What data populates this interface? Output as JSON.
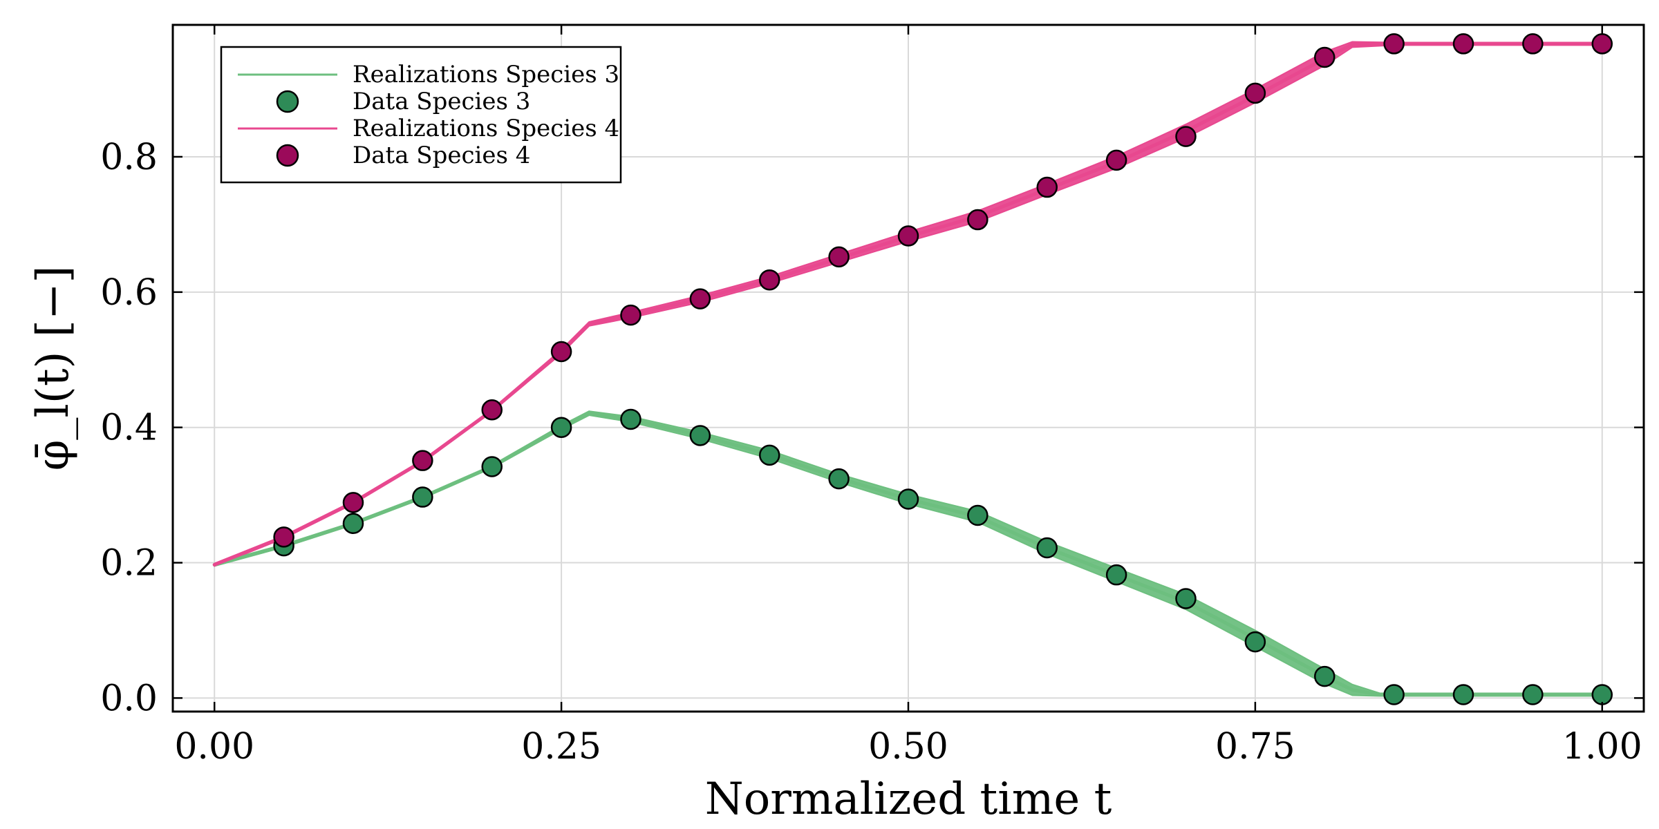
{
  "chart_data": {
    "type": "line",
    "title": "",
    "xlabel": "Normalized time t",
    "ylabel": "φ̄_l(t) [−]",
    "xlim": [
      -0.03,
      1.03
    ],
    "ylim": [
      -0.02,
      0.995
    ],
    "x_ticks": [
      0.0,
      0.25,
      0.5,
      0.75,
      1.0
    ],
    "x_tick_labels": [
      "0.00",
      "0.25",
      "0.50",
      "0.75",
      "1.00"
    ],
    "y_ticks": [
      0.0,
      0.2,
      0.4,
      0.6,
      0.8
    ],
    "y_tick_labels": [
      "0.0",
      "0.2",
      "0.4",
      "0.6",
      "0.8"
    ],
    "grid": true,
    "legend_position": "top-left",
    "series": [
      {
        "name": "Realizations Species 3",
        "kind": "line",
        "color": "#6dbf7f",
        "x": [
          0.0,
          0.05,
          0.1,
          0.15,
          0.2,
          0.25,
          0.27,
          0.3,
          0.35,
          0.4,
          0.45,
          0.5,
          0.55,
          0.6,
          0.65,
          0.7,
          0.75,
          0.8,
          0.82,
          0.84,
          0.9,
          1.0
        ],
        "values": [
          0.197,
          0.225,
          0.258,
          0.297,
          0.342,
          0.4,
          0.421,
          0.412,
          0.388,
          0.36,
          0.325,
          0.294,
          0.268,
          0.222,
          0.182,
          0.142,
          0.088,
          0.032,
          0.012,
          0.005,
          0.005,
          0.005
        ],
        "band_halfwidth": [
          0.002,
          0.002,
          0.002,
          0.002,
          0.002,
          0.003,
          0.003,
          0.004,
          0.005,
          0.006,
          0.006,
          0.007,
          0.008,
          0.009,
          0.01,
          0.011,
          0.012,
          0.011,
          0.008,
          0.002,
          0.002,
          0.002
        ]
      },
      {
        "name": "Data Species 3",
        "kind": "scatter",
        "color": "#2e8b57",
        "x": [
          0.05,
          0.1,
          0.15,
          0.2,
          0.25,
          0.3,
          0.35,
          0.4,
          0.45,
          0.5,
          0.55,
          0.6,
          0.65,
          0.7,
          0.75,
          0.8,
          0.85,
          0.9,
          0.95,
          1.0
        ],
        "values": [
          0.225,
          0.258,
          0.297,
          0.342,
          0.4,
          0.412,
          0.388,
          0.359,
          0.324,
          0.294,
          0.27,
          0.222,
          0.182,
          0.147,
          0.083,
          0.032,
          0.005,
          0.005,
          0.005,
          0.005
        ]
      },
      {
        "name": "Realizations Species 4",
        "kind": "line",
        "color": "#e8488f",
        "x": [
          0.0,
          0.05,
          0.1,
          0.15,
          0.2,
          0.25,
          0.27,
          0.3,
          0.35,
          0.4,
          0.45,
          0.5,
          0.55,
          0.6,
          0.65,
          0.7,
          0.75,
          0.8,
          0.82,
          0.85,
          0.9,
          1.0
        ],
        "values": [
          0.197,
          0.238,
          0.289,
          0.35,
          0.425,
          0.512,
          0.553,
          0.566,
          0.59,
          0.618,
          0.65,
          0.682,
          0.712,
          0.752,
          0.792,
          0.838,
          0.89,
          0.945,
          0.966,
          0.967,
          0.967,
          0.967
        ],
        "band_halfwidth": [
          0.002,
          0.002,
          0.002,
          0.002,
          0.002,
          0.003,
          0.003,
          0.004,
          0.005,
          0.005,
          0.006,
          0.007,
          0.008,
          0.008,
          0.009,
          0.01,
          0.01,
          0.01,
          0.004,
          0.002,
          0.002,
          0.002
        ]
      },
      {
        "name": "Data Species 4",
        "kind": "scatter",
        "color": "#9b0a5a",
        "x": [
          0.05,
          0.1,
          0.15,
          0.2,
          0.25,
          0.3,
          0.35,
          0.4,
          0.45,
          0.5,
          0.55,
          0.6,
          0.65,
          0.7,
          0.75,
          0.8,
          0.85,
          0.9,
          0.95,
          1.0
        ],
        "values": [
          0.238,
          0.289,
          0.351,
          0.426,
          0.512,
          0.566,
          0.59,
          0.618,
          0.652,
          0.683,
          0.707,
          0.755,
          0.795,
          0.83,
          0.894,
          0.947,
          0.967,
          0.967,
          0.967,
          0.967
        ]
      }
    ]
  }
}
